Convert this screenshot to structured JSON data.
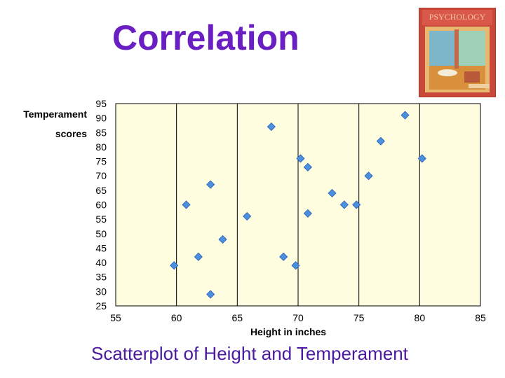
{
  "slide": {
    "title": "Correlation",
    "caption": "Scatterplot of Height and Temperament"
  },
  "book_cover": {
    "text": "PSYCHOLOGY",
    "colors": {
      "background": "#c9483a",
      "text": "#f0c8a8"
    }
  },
  "colors": {
    "title": "#6a1fc2",
    "caption": "#4b1a9e",
    "plot_background": "#fffde0",
    "grid": "#000000",
    "marker": "#4a8fe0",
    "marker_edge": "#2a5fb0"
  },
  "chart_data": {
    "type": "scatter",
    "xlabel": "Height in inches",
    "ylabel_lines": [
      "Temperament",
      "scores"
    ],
    "xlim": [
      55,
      85
    ],
    "ylim": [
      25,
      95
    ],
    "x_ticks": [
      55,
      60,
      65,
      70,
      75,
      80,
      85
    ],
    "y_ticks": [
      95,
      90,
      85,
      80,
      75,
      70,
      65,
      60,
      55,
      50,
      45,
      40,
      35,
      30,
      25
    ],
    "grid": true,
    "series": [
      {
        "points": [
          {
            "x": 59.8,
            "y": 39
          },
          {
            "x": 60.8,
            "y": 60
          },
          {
            "x": 61.8,
            "y": 42
          },
          {
            "x": 62.8,
            "y": 67
          },
          {
            "x": 62.8,
            "y": 29
          },
          {
            "x": 63.8,
            "y": 48
          },
          {
            "x": 65.8,
            "y": 56
          },
          {
            "x": 67.8,
            "y": 87
          },
          {
            "x": 68.8,
            "y": 42
          },
          {
            "x": 69.8,
            "y": 39
          },
          {
            "x": 70.2,
            "y": 76
          },
          {
            "x": 70.8,
            "y": 73
          },
          {
            "x": 70.8,
            "y": 57
          },
          {
            "x": 72.8,
            "y": 64
          },
          {
            "x": 73.8,
            "y": 60
          },
          {
            "x": 74.8,
            "y": 60
          },
          {
            "x": 75.8,
            "y": 70
          },
          {
            "x": 76.8,
            "y": 82
          },
          {
            "x": 78.8,
            "y": 91
          },
          {
            "x": 80.2,
            "y": 76
          }
        ]
      }
    ]
  }
}
